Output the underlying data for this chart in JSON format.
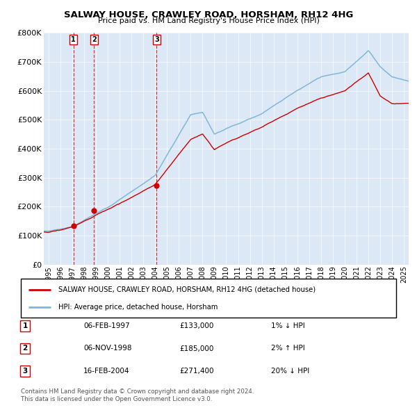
{
  "title": "SALWAY HOUSE, CRAWLEY ROAD, HORSHAM, RH12 4HG",
  "subtitle": "Price paid vs. HM Land Registry's House Price Index (HPI)",
  "legend_line1": "SALWAY HOUSE, CRAWLEY ROAD, HORSHAM, RH12 4HG (detached house)",
  "legend_line2": "HPI: Average price, detached house, Horsham",
  "transactions": [
    {
      "num": 1,
      "date": "06-FEB-1997",
      "year": 1997.1,
      "price": 133000,
      "price_str": "£133,000",
      "hpi_diff": "1% ↓ HPI"
    },
    {
      "num": 2,
      "date": "06-NOV-1998",
      "year": 1998.85,
      "price": 185000,
      "price_str": "£185,000",
      "hpi_diff": "2% ↑ HPI"
    },
    {
      "num": 3,
      "date": "16-FEB-2004",
      "year": 2004.12,
      "price": 271400,
      "price_str": "£271,400",
      "hpi_diff": "20% ↓ HPI"
    }
  ],
  "footer_line1": "Contains HM Land Registry data © Crown copyright and database right 2024.",
  "footer_line2": "This data is licensed under the Open Government Licence v3.0.",
  "hpi_color": "#7db8d8",
  "price_color": "#cc0000",
  "dashed_color": "#cc0000",
  "bg_plot": "#dce8f5",
  "ylim": [
    0,
    800000
  ],
  "yticks": [
    0,
    100000,
    200000,
    300000,
    400000,
    500000,
    600000,
    700000,
    800000
  ],
  "xlim_start": 1994.6,
  "xlim_end": 2025.4
}
